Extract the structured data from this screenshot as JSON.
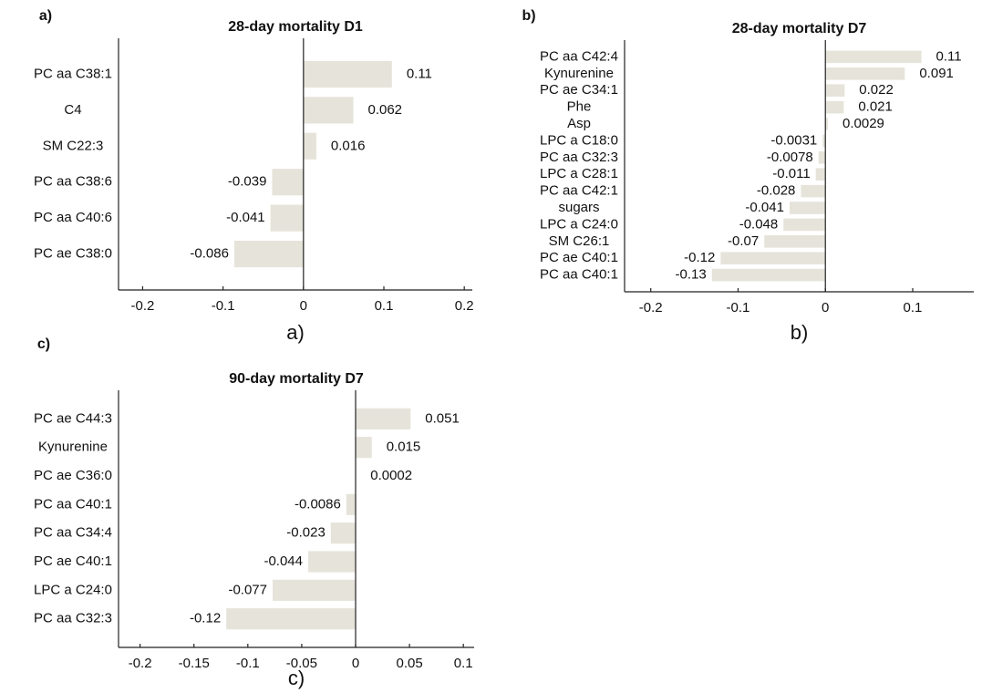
{
  "chart_data": [
    {
      "type": "bar",
      "orientation": "horizontal",
      "panel_label": "a)",
      "caption": "a)",
      "title": "28-day mortality D1",
      "categories": [
        "PC aa C38:1",
        "C4",
        "SM C22:3",
        "PC aa C38:6",
        "PC aa C40:6",
        "PC ae C38:0"
      ],
      "values": [
        0.11,
        0.062,
        0.016,
        -0.039,
        -0.041,
        -0.086
      ],
      "color": "#e6e4da",
      "xlim": [
        -0.23,
        0.21
      ],
      "xticks": [
        -0.2,
        -0.1,
        0,
        0.1,
        0.2
      ]
    },
    {
      "type": "bar",
      "orientation": "horizontal",
      "panel_label": "b)",
      "caption": "b)",
      "title": "28-day mortality D7",
      "categories": [
        "PC aa C42:4",
        "Kynurenine",
        "PC ae C34:1",
        "Phe",
        "Asp",
        "LPC a C18:0",
        "PC aa C32:3",
        "LPC a C28:1",
        "PC aa C42:1",
        "sugars",
        "LPC a C24:0",
        "SM C26:1",
        "PC ae C40:1",
        "PC aa C40:1"
      ],
      "values": [
        0.11,
        0.091,
        0.022,
        0.021,
        0.0029,
        -0.0031,
        -0.0078,
        -0.011,
        -0.028,
        -0.041,
        -0.048,
        -0.07,
        -0.12,
        -0.13
      ],
      "color": "#e6e4da",
      "xlim": [
        -0.23,
        0.17
      ],
      "xticks": [
        -0.2,
        -0.1,
        0,
        0.1
      ]
    },
    {
      "type": "bar",
      "orientation": "horizontal",
      "panel_label": "c)",
      "caption": "c)",
      "title": "90-day mortality D7",
      "categories": [
        "PC ae C44:3",
        "Kynurenine",
        "PC ae C36:0",
        "PC aa C40:1",
        "PC aa C34:4",
        "PC ae C40:1",
        "LPC a C24:0",
        "PC aa C32:3"
      ],
      "values": [
        0.051,
        0.015,
        0.0002,
        -0.0086,
        -0.023,
        -0.044,
        -0.077,
        -0.12
      ],
      "color": "#e6e4da",
      "xlim": [
        -0.22,
        0.11
      ],
      "xticks": [
        -0.2,
        -0.15,
        -0.1,
        -0.05,
        0,
        0.05,
        0.1
      ]
    }
  ]
}
